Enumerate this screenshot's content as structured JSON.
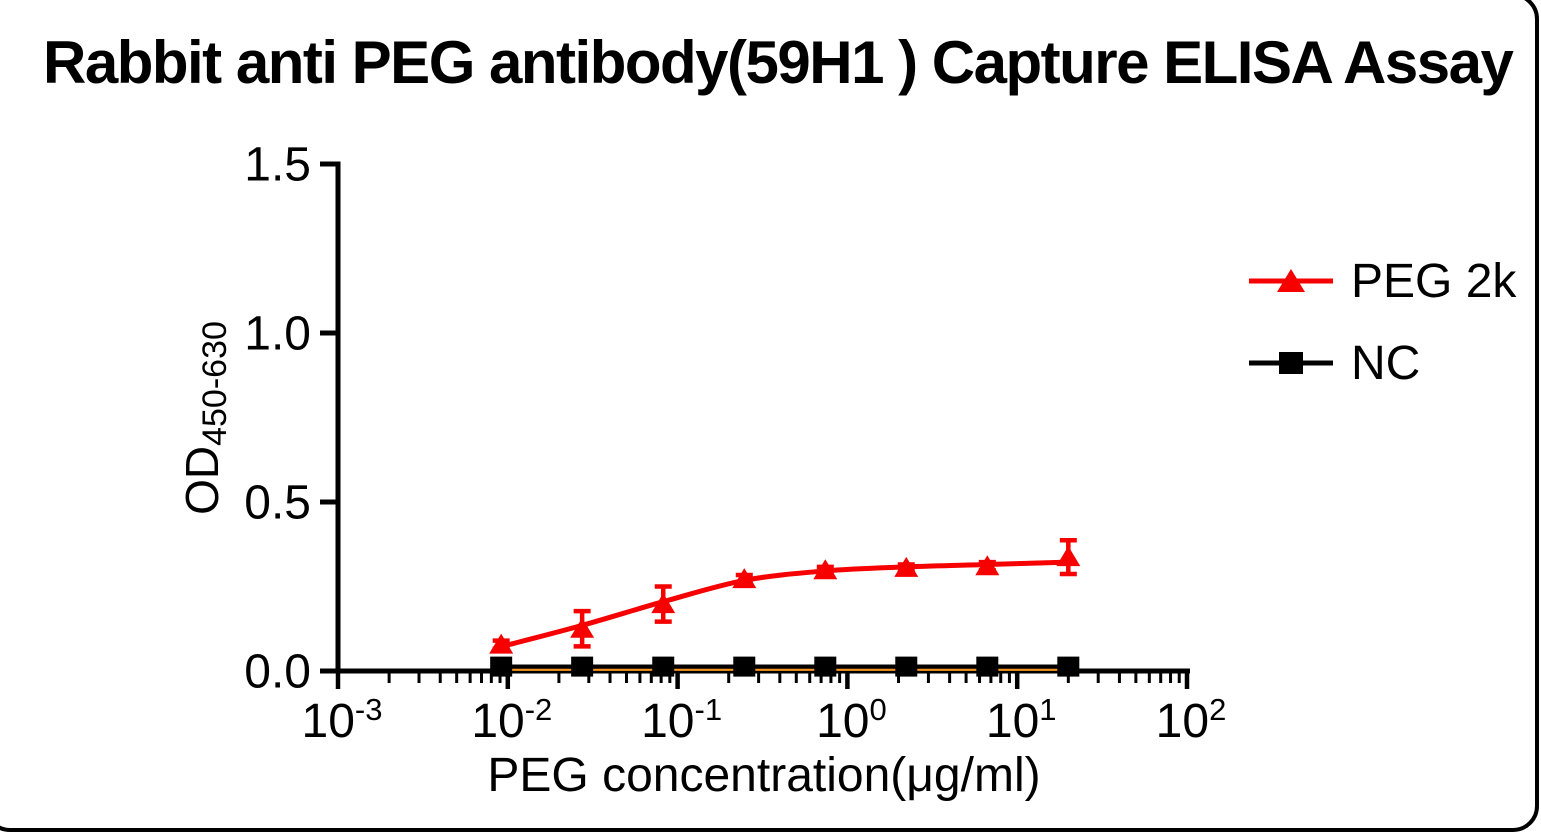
{
  "title": "Rabbit anti PEG antibody(59H1 ) Capture ELISA Assay",
  "card": {
    "background": "#ffffff",
    "border_color": "#000000"
  },
  "chart_data": {
    "type": "scatter",
    "x_scale": "log",
    "title": "Rabbit anti PEG antibody(59H1 ) Capture ELISA Assay",
    "xlabel": "PEG concentration(μg/ml)",
    "ylabel_main": "OD",
    "ylabel_subscript": "450-630",
    "xlim": [
      0.001,
      100
    ],
    "ylim": [
      0.0,
      1.5
    ],
    "x_tick_base": "10",
    "x_tick_exponents": [
      -3,
      -2,
      -1,
      0,
      1,
      2
    ],
    "y_ticks": [
      "0.0",
      "0.5",
      "1.0",
      "1.5"
    ],
    "grid": false,
    "legend_position": "right",
    "axis_color": "#000000",
    "x": [
      0.00914,
      0.0274,
      0.0823,
      0.247,
      0.741,
      2.222,
      6.667,
      20
    ],
    "series": [
      {
        "name": "PEG 2k",
        "marker": "triangle",
        "color": "#f60000",
        "fit_color": "#f60000",
        "values": [
          0.078,
          0.125,
          0.198,
          0.272,
          0.298,
          0.305,
          0.31,
          0.337
        ],
        "sd": [
          0.012,
          0.052,
          0.052,
          0.012,
          0.01,
          0.01,
          0.012,
          0.05
        ],
        "fit": [
          0.072,
          0.135,
          0.205,
          0.268,
          0.296,
          0.308,
          0.315,
          0.322
        ]
      },
      {
        "name": "NC",
        "marker": "square",
        "color": "#000000",
        "fit_color": "#f7941d",
        "values": [
          0.013,
          0.013,
          0.013,
          0.013,
          0.013,
          0.013,
          0.013,
          0.013
        ],
        "sd": [
          0.004,
          0.004,
          0.004,
          0.004,
          0.004,
          0.004,
          0.004,
          0.004
        ],
        "fit": [
          0.01,
          0.01,
          0.01,
          0.01,
          0.01,
          0.01,
          0.01,
          0.01
        ]
      }
    ]
  }
}
